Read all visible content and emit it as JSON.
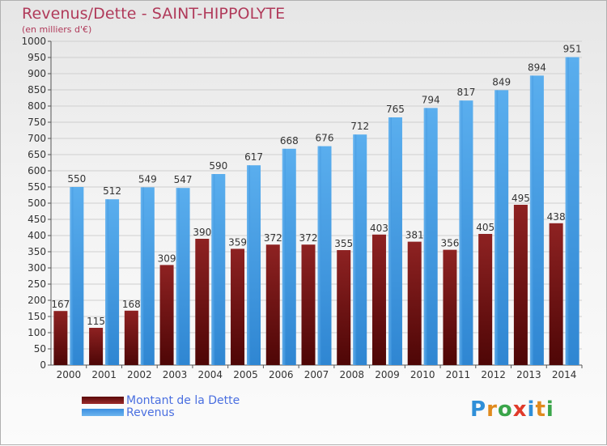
{
  "header": {
    "title": "Revenus/Dette - SAINT-HIPPOLYTE",
    "subtitle": "(en milliers d'€)"
  },
  "legend": {
    "debt_label": "Montant de la Dette",
    "revenue_label": "Revenus"
  },
  "logo": {
    "letters": [
      "P",
      "r",
      "o",
      "x",
      "i",
      "t",
      "i"
    ],
    "colors": [
      "#2f8fd8",
      "#e08a1e",
      "#3aa54a",
      "#e03a2a",
      "#2f8fd8",
      "#e08a1e",
      "#3aa54a"
    ]
  },
  "colors": {
    "debt": "#7a1515",
    "revenue": "#4aa3e8",
    "title": "#b03a5a",
    "legend_text": "#4a6fe0"
  },
  "chart_data": {
    "type": "bar",
    "title": "Revenus/Dette - SAINT-HIPPOLYTE",
    "ylabel": "(en milliers d'€)",
    "xlabel": "",
    "ylim": [
      0,
      1000
    ],
    "ytick_step": 50,
    "grid": true,
    "legend_position": "bottom-left",
    "categories": [
      "2000",
      "2001",
      "2002",
      "2003",
      "2004",
      "2005",
      "2006",
      "2007",
      "2008",
      "2009",
      "2010",
      "2011",
      "2012",
      "2013",
      "2014"
    ],
    "series": [
      {
        "name": "Montant de la Dette",
        "values": [
          167,
          115,
          168,
          309,
          390,
          359,
          372,
          372,
          355,
          403,
          381,
          356,
          405,
          495,
          438
        ]
      },
      {
        "name": "Revenus",
        "values": [
          550,
          512,
          549,
          547,
          590,
          617,
          668,
          676,
          712,
          765,
          794,
          817,
          849,
          894,
          951
        ]
      }
    ]
  }
}
